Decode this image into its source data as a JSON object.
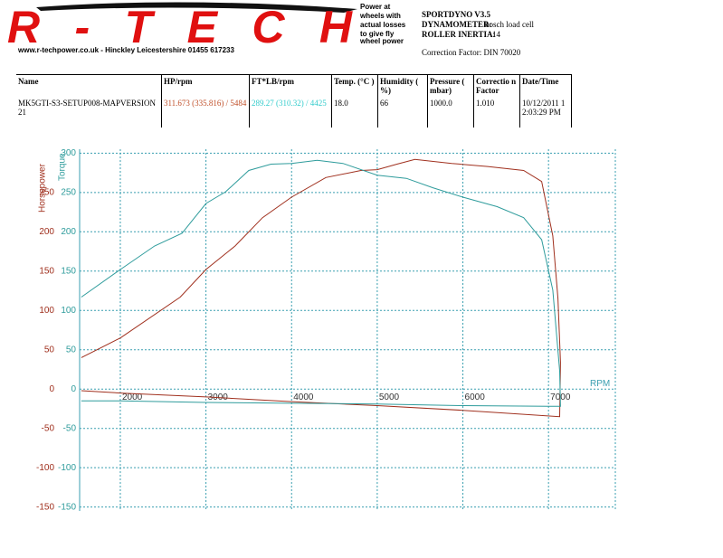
{
  "header": {
    "logo": "R-TECH",
    "website": "www.r-techpower.co.uk - Hinckley Leicestershire 01455 617233",
    "note": [
      "Power at",
      "wheels with",
      "actual losses",
      "to give fly",
      "wheel power"
    ],
    "dyno": {
      "name": "SPORTDYNO V3.5",
      "dynamometer_label": "DYNAMOMETER:",
      "dynamometer": "bosch load cell",
      "inertia_label": "ROLLER INERTIA:",
      "inertia": "14",
      "correction": "Correction Factor: DIN 70020"
    }
  },
  "table": {
    "headers": [
      "Name",
      "HP/rpm",
      "FT*LB/rpm",
      "Temp. (°C )",
      "Humidity ( %)",
      "Pressure ( mbar)",
      "Correctio n Factor",
      "Date/Time"
    ],
    "rows": [
      [
        "MK5GTI-S3-SETUP008-MAPVERSION21",
        "311.673 (335.816) / 5484",
        "289.27 (310.32) / 4425",
        "18.0",
        "66",
        "1000.0",
        "1.010",
        "10/12/2011 12:03:29 PM"
      ]
    ]
  },
  "chart_data": {
    "type": "line",
    "xlabel": "RPM",
    "ylabel": "Horsepower",
    "y2label": "Torque",
    "grid": true,
    "xlim": [
      1525,
      7780
    ],
    "xticks": [
      2000,
      3000,
      4000,
      5000,
      6000,
      7000
    ],
    "ylim": [
      -155,
      305
    ],
    "yticks": [
      250,
      200,
      150,
      100,
      50,
      0,
      -50,
      -100,
      -150
    ],
    "y2lim": [
      -155,
      305
    ],
    "y2ticks": [
      300,
      250,
      200,
      150,
      100,
      50,
      0,
      -50,
      -100,
      -150
    ],
    "series": [
      {
        "name": "HP/rpm",
        "color": "#a0301e",
        "x": [
          1545,
          2000,
          2700,
          3000,
          3340,
          3660,
          4000,
          4400,
          4810,
          5000,
          5230,
          5440,
          5870,
          6290,
          6710,
          6920,
          7050,
          7110,
          7140,
          7130,
          6000,
          5000,
          4000,
          3000,
          2000,
          1545
        ],
        "values": [
          40,
          65,
          117,
          152,
          182,
          218,
          244,
          269,
          278,
          279,
          286,
          292,
          287,
          283,
          278,
          264,
          195,
          115,
          34,
          -35,
          -27,
          -21,
          -16,
          -10,
          -5,
          -2
        ]
      },
      {
        "name": "FT*LB/rpm",
        "color": "#2f9c9c",
        "axis": "y2",
        "x": [
          1545,
          2000,
          2400,
          2720,
          3000,
          3230,
          3500,
          3760,
          4000,
          4300,
          4600,
          5000,
          5340,
          5650,
          6000,
          6400,
          6710,
          6920,
          7050,
          7130,
          7140,
          7000,
          6000,
          5000,
          4000,
          3000,
          2000,
          1545
        ],
        "values": [
          117,
          152,
          182,
          198,
          236,
          251,
          278,
          286,
          287,
          291,
          287,
          272,
          268,
          256,
          244,
          232,
          218,
          190,
          126,
          23,
          -22,
          -22,
          -21,
          -19,
          -18,
          -17,
          -15,
          -15
        ]
      }
    ]
  }
}
